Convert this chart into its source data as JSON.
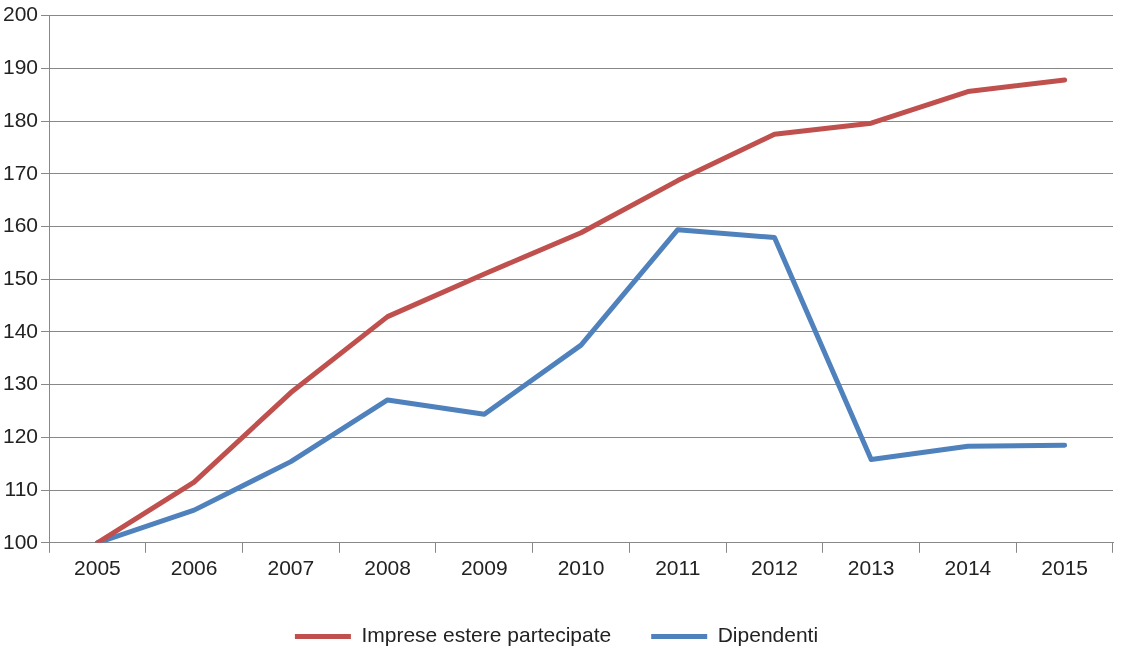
{
  "chart_data": {
    "type": "line",
    "categories": [
      "2005",
      "2006",
      "2007",
      "2008",
      "2009",
      "2010",
      "2011",
      "2012",
      "2013",
      "2014",
      "2015"
    ],
    "series": [
      {
        "name": "Imprese estere partecipate",
        "color": "#c0504d",
        "values": [
          100,
          111.5,
          128.5,
          142.9,
          151,
          158.8,
          168.7,
          177.5,
          179.6,
          185.6,
          187.8
        ]
      },
      {
        "name": "Dipendenti",
        "color": "#4f81bd",
        "values": [
          100,
          106.2,
          115.4,
          127.1,
          124.4,
          137.5,
          159.4,
          157.9,
          115.8,
          118.3,
          118.5
        ]
      }
    ],
    "ylim": [
      100,
      200
    ],
    "yticks": [
      100,
      110,
      120,
      130,
      140,
      150,
      160,
      170,
      180,
      190,
      200
    ],
    "grid": "y",
    "legend": "bottom",
    "marker": "none",
    "line_style": "solid"
  }
}
